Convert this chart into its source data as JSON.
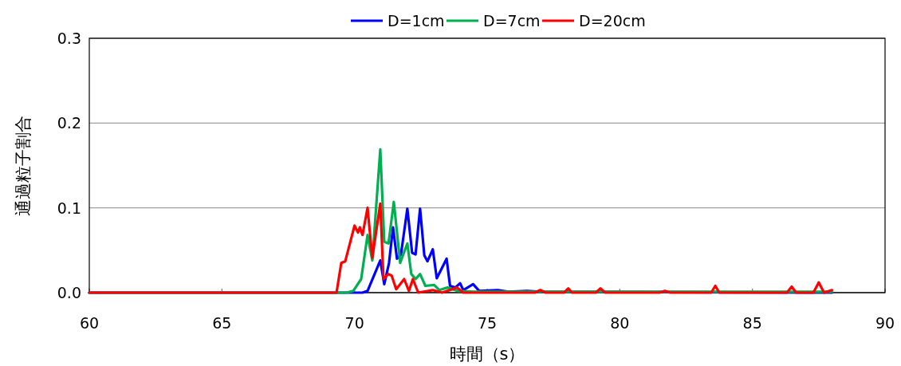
{
  "chart_data": {
    "type": "line",
    "xlabel": "時間（s）",
    "ylabel": "通過粒子割合",
    "xlim": [
      60,
      90
    ],
    "ylim": [
      0,
      0.3
    ],
    "xticks": [
      60,
      65,
      70,
      75,
      80,
      85,
      90
    ],
    "yticks": [
      {
        "value": 0,
        "label": "0.0"
      },
      {
        "value": 0.1,
        "label": "0.1"
      },
      {
        "value": 0.2,
        "label": "0.2"
      },
      {
        "value": 0.3,
        "label": "0.3"
      }
    ],
    "grid": "y",
    "legend": "top",
    "marker": "none",
    "line_style": "solid",
    "series": [
      {
        "name": "D=1cm",
        "color": "#0000ff",
        "x": [
          60,
          70.3,
          70.49,
          70.97,
          71.12,
          71.3,
          71.45,
          71.6,
          71.75,
          71.99,
          72.17,
          72.3,
          72.47,
          72.63,
          72.75,
          72.95,
          73.1,
          73.47,
          73.6,
          73.8,
          73.98,
          74.1,
          74.47,
          74.7,
          75.4,
          75.8,
          76.5,
          77,
          88
        ],
        "values": [
          0,
          0,
          0.002,
          0.038,
          0.01,
          0.035,
          0.077,
          0.04,
          0.045,
          0.099,
          0.047,
          0.045,
          0.099,
          0.044,
          0.037,
          0.051,
          0.017,
          0.04,
          0.008,
          0.006,
          0.011,
          0.003,
          0.01,
          0.002,
          0.003,
          0.001,
          0.002,
          0.001,
          0
        ]
      },
      {
        "name": "D=7cm",
        "color": "#00b050",
        "x": [
          60,
          69.7,
          69.95,
          70.25,
          70.49,
          70.67,
          70.97,
          71.12,
          71.28,
          71.48,
          71.72,
          71.99,
          72.14,
          72.3,
          72.47,
          72.67,
          73,
          73.2,
          73.5,
          73.9,
          74.5,
          88
        ],
        "values": [
          0,
          0,
          0.002,
          0.016,
          0.068,
          0.038,
          0.169,
          0.06,
          0.058,
          0.107,
          0.035,
          0.058,
          0.022,
          0.016,
          0.022,
          0.008,
          0.009,
          0.003,
          0.006,
          0.002,
          0.001,
          0.001
        ]
      },
      {
        "name": "D=20cm",
        "color": "#ff0000",
        "x": [
          60,
          69.32,
          69.5,
          69.65,
          70,
          70.13,
          70.2,
          70.3,
          70.49,
          70.67,
          70.97,
          71.09,
          71.27,
          71.4,
          71.57,
          71.87,
          72.05,
          72.2,
          72.4,
          72.95,
          73.3,
          73.86,
          74.1,
          76.8,
          77,
          77.2,
          77.9,
          78.06,
          78.2,
          79.1,
          79.27,
          79.45,
          81.5,
          81.7,
          81.9,
          83.45,
          83.6,
          83.75,
          86.3,
          86.48,
          86.65,
          87.3,
          87.5,
          87.7,
          88
        ],
        "values": [
          0,
          0,
          0.035,
          0.037,
          0.079,
          0.071,
          0.077,
          0.068,
          0.1,
          0.041,
          0.105,
          0.016,
          0.022,
          0.02,
          0.004,
          0.016,
          0.002,
          0.016,
          0,
          0.003,
          0,
          0.006,
          0,
          0,
          0.003,
          0,
          0,
          0.005,
          0,
          0,
          0.005,
          0,
          0,
          0.002,
          0,
          0,
          0.008,
          0,
          0,
          0.007,
          0,
          0,
          0.012,
          0,
          0.003
        ]
      }
    ]
  }
}
